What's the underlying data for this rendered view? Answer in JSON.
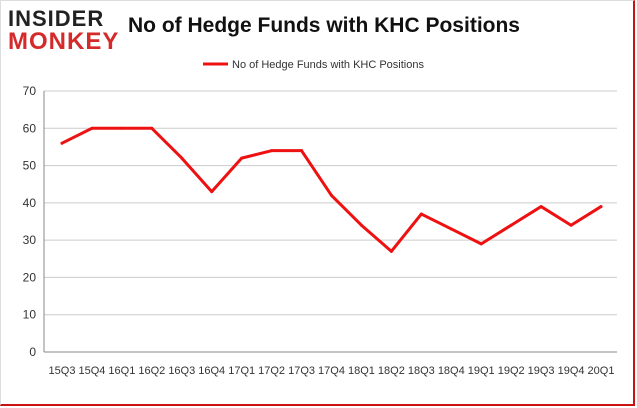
{
  "logo": {
    "line1": "INSIDER",
    "line2": "MONKEY"
  },
  "colors": {
    "series": "#ee1111",
    "grid": "#cccccc",
    "axis": "#888888",
    "text": "#333333",
    "accent": "#d42a2a"
  },
  "chart_data": {
    "type": "line",
    "title": "No of Hedge Funds with KHC Positions",
    "xlabel": "",
    "ylabel": "",
    "ylim": [
      0,
      70
    ],
    "yticks": [
      0,
      10,
      20,
      30,
      40,
      50,
      60,
      70
    ],
    "grid": true,
    "legend": "top-center",
    "categories": [
      "15Q3",
      "15Q4",
      "16Q1",
      "16Q2",
      "16Q3",
      "16Q4",
      "17Q1",
      "17Q2",
      "17Q3",
      "17Q4",
      "18Q1",
      "18Q2",
      "18Q3",
      "18Q4",
      "19Q1",
      "19Q2",
      "19Q3",
      "19Q4",
      "20Q1"
    ],
    "series": [
      {
        "name": "No of Hedge Funds with KHC Positions",
        "values": [
          56,
          60,
          60,
          60,
          52,
          43,
          52,
          54,
          54,
          42,
          34,
          27,
          37,
          33,
          29,
          34,
          39,
          34,
          39
        ]
      }
    ]
  }
}
